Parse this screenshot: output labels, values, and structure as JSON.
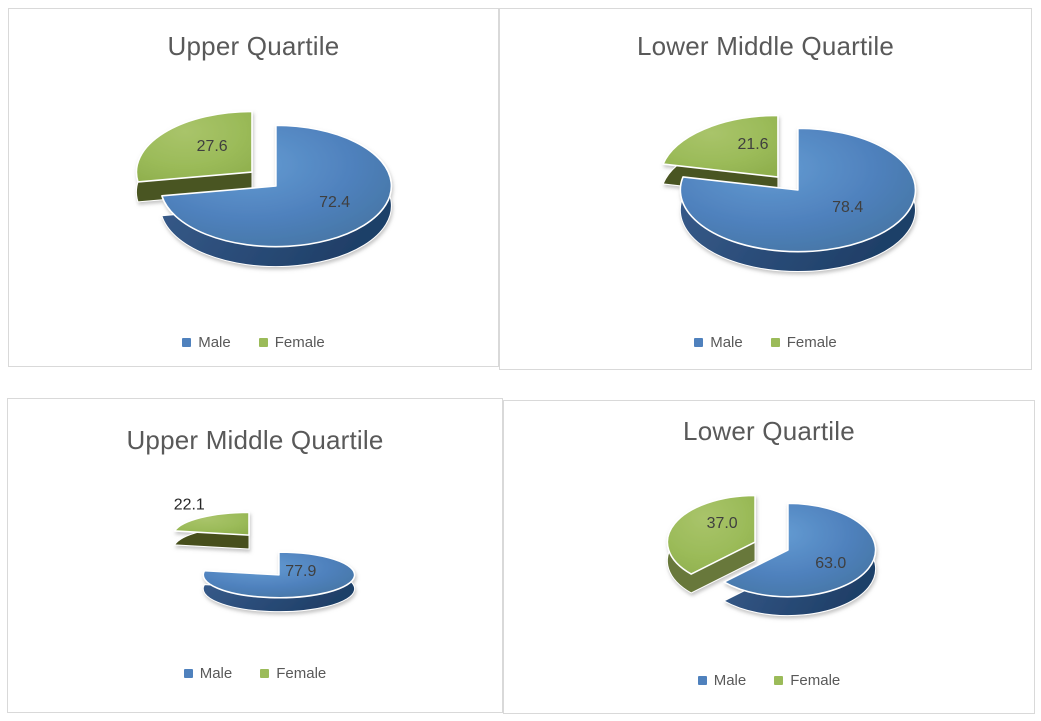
{
  "page": {
    "background": "#FFFFFF",
    "layout_note": "2x2 grid of 3D exploded pie charts"
  },
  "colors": {
    "male": "#4F81BD",
    "male_light": "#639BD2",
    "male_dark": "#44739F",
    "male_side_light": "#3A5E8E",
    "male_side_dark": "#1F3F68",
    "female": "#9BBB59",
    "female_light": "#A9C46A",
    "female_dark": "#8FAF4D",
    "title_text": "#595959",
    "legend_text": "#595959",
    "label_text": "#3F3F3F",
    "panel_border": "#D9D9D9",
    "background": "#FFFFFF"
  },
  "chart_data": [
    {
      "type": "pie",
      "style": "3d-exploded",
      "title": "Upper Quartile",
      "categories": [
        "Male",
        "Female"
      ],
      "values": [
        72.4,
        27.6
      ],
      "data_labels": [
        "72.4",
        "27.6"
      ],
      "exploded_slice": "Female",
      "legend_position": "bottom",
      "unit": "percent"
    },
    {
      "type": "pie",
      "style": "3d-exploded",
      "title": "Lower Middle Quartile",
      "categories": [
        "Male",
        "Female"
      ],
      "values": [
        78.4,
        21.6
      ],
      "data_labels": [
        "78.4",
        "21.6"
      ],
      "exploded_slice": "Female",
      "legend_position": "bottom",
      "unit": "percent"
    },
    {
      "type": "pie",
      "style": "3d-exploded",
      "title": "Upper Middle Quartile",
      "categories": [
        "Male",
        "Female"
      ],
      "values": [
        77.9,
        22.1
      ],
      "data_labels": [
        "77.9",
        "22.1"
      ],
      "exploded_slice": "Female",
      "legend_position": "bottom",
      "unit": "percent"
    },
    {
      "type": "pie",
      "style": "3d-exploded",
      "title": "Lower Quartile",
      "categories": [
        "Male",
        "Female"
      ],
      "values": [
        63.0,
        37.0
      ],
      "data_labels": [
        "63.0",
        "37.0"
      ],
      "exploded_slice": "Female",
      "legend_position": "bottom",
      "unit": "percent"
    }
  ]
}
